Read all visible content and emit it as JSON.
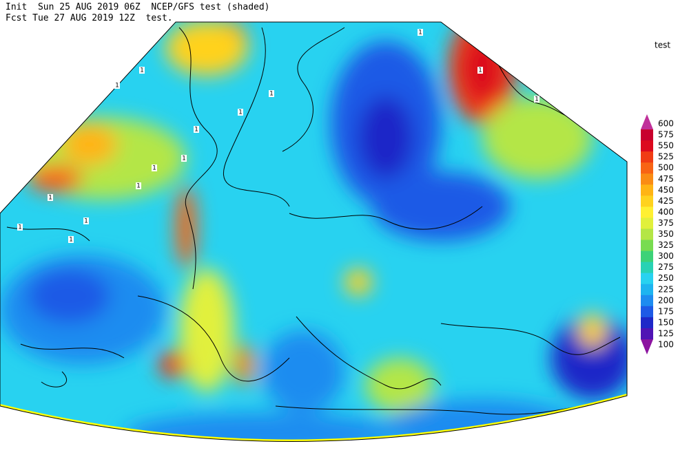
{
  "header": {
    "line1": "Init  Sun 25 AUG 2019 06Z  NCEP/GFS test (shaded)",
    "line2": "Fcst Tue 27 AUG 2019 12Z  test."
  },
  "legend": {
    "title": "test",
    "levels": [
      600,
      575,
      550,
      525,
      500,
      475,
      450,
      425,
      400,
      375,
      350,
      325,
      300,
      275,
      250,
      225,
      200,
      175,
      150,
      125,
      100
    ],
    "colors": [
      "#c0309a",
      "#c8002d",
      "#dc0a1e",
      "#f03c14",
      "#f86414",
      "#fa8c14",
      "#ffb414",
      "#ffd21e",
      "#fff032",
      "#e1f03c",
      "#b4e646",
      "#78dc50",
      "#3cd278",
      "#28d2b4",
      "#28d2f0",
      "#1eb4f0",
      "#1e8cf0",
      "#1e5ae6",
      "#1e28c8",
      "#5014b4",
      "#8c14a0"
    ]
  },
  "contour_labels": [
    "1",
    "1",
    "1",
    "1",
    "1",
    "1",
    "1",
    "1",
    "1",
    "1",
    "1",
    "1",
    "1",
    "1",
    "1"
  ]
}
